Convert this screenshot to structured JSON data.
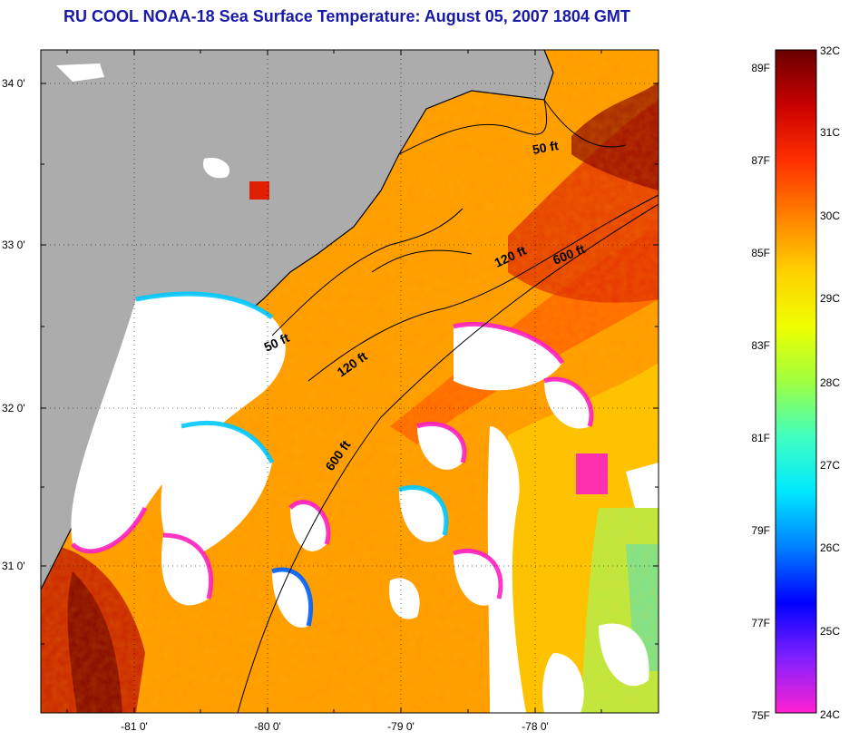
{
  "title": "RU COOL  NOAA-18  Sea Surface Temperature:  August 05, 2007 1804 GMT",
  "map": {
    "lat_labels": [
      "34 0'",
      "33 0'",
      "32 0'",
      "31 0'"
    ],
    "lon_labels": [
      "-81 0'",
      "-80 0'",
      "-79 0'",
      "-78 0'"
    ],
    "contours": [
      {
        "label": "50 ft",
        "name": "contour-50ft-north"
      },
      {
        "label": "120 ft",
        "name": "contour-120ft-north"
      },
      {
        "label": "600 ft",
        "name": "contour-600ft-north"
      },
      {
        "label": "50 ft",
        "name": "contour-50ft-south"
      },
      {
        "label": "120 ft",
        "name": "contour-120ft-south"
      },
      {
        "label": "600 ft",
        "name": "contour-600ft-south"
      }
    ],
    "colors": {
      "land": "#acacac",
      "cloud": "#ffffff",
      "warm": "#ff8000",
      "hot": "#d00000",
      "very_hot": "#7a0000",
      "moderate": "#ffb000",
      "cool": "#c8ff40",
      "cold_cyan": "#00e0ff",
      "cold_blue": "#0040ff",
      "cold_magenta": "#ff20c0"
    }
  },
  "colorbar": {
    "fahrenheit_labels": [
      "89F",
      "87F",
      "85F",
      "83F",
      "81F",
      "79F",
      "77F",
      "75F"
    ],
    "celsius_labels": [
      "32C",
      "31C",
      "30C",
      "29C",
      "28C",
      "27C",
      "26C",
      "25C",
      "24C"
    ],
    "gradient_stops": [
      "#6a0000",
      "#c80000",
      "#ff3000",
      "#ff8000",
      "#ffd000",
      "#f0ff00",
      "#a0ff40",
      "#40ffc0",
      "#00e8ff",
      "#0080ff",
      "#0000ff",
      "#8020ff",
      "#ff20d0"
    ]
  }
}
